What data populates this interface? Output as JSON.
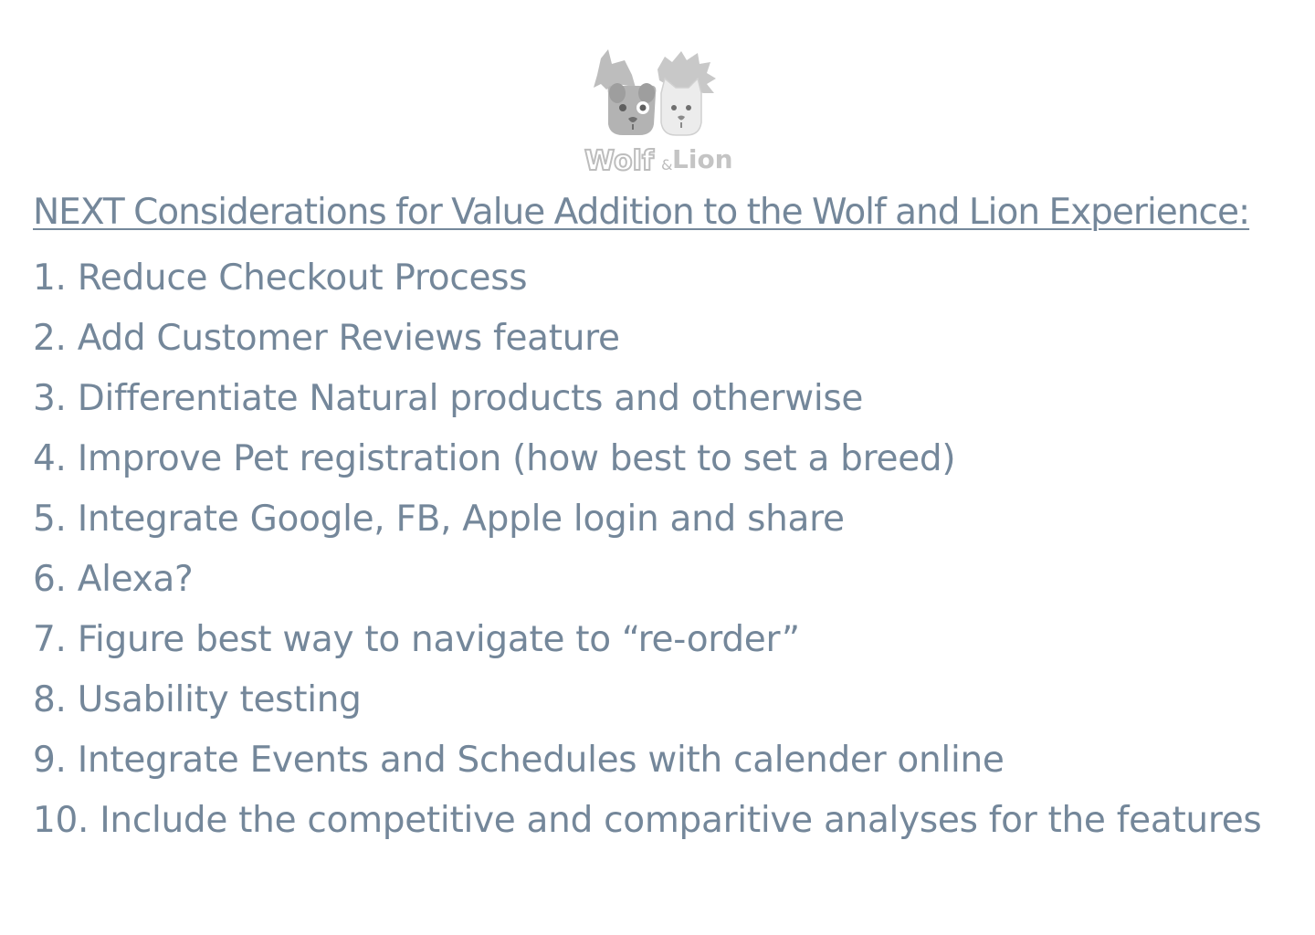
{
  "logo": {
    "text_left": "Wolf",
    "text_amp": "&",
    "text_right": "Lion"
  },
  "heading": "NEXT Considerations for Value Addition to the Wolf and Lion Experience:",
  "items": [
    "1. Reduce Checkout Process",
    "2. Add Customer Reviews feature",
    "3. Differentiate Natural products and otherwise",
    "4. Improve Pet registration (how best to set a breed)",
    "5. Integrate Google, FB, Apple login and share",
    "6. Alexa?",
    "7. Figure best way to navigate to “re-order”",
    "8. Usability testing",
    "9. Integrate Events and Schedules with calender online",
    "10. Include the competitive and comparitive analyses for the features"
  ],
  "colors": {
    "text": "#74879a",
    "logo_gray": "#bdbdbd",
    "logo_dark": "#8f8f8f"
  }
}
